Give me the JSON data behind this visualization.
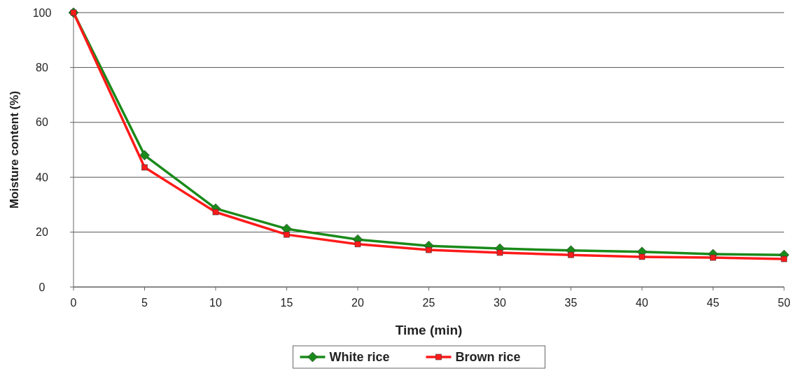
{
  "chart_data": {
    "type": "line",
    "xlabel": "Time (min)",
    "ylabel": "Moisture content (%)",
    "x": [
      0,
      5,
      10,
      15,
      20,
      25,
      30,
      35,
      40,
      45,
      50
    ],
    "series": [
      {
        "name": "White rice",
        "color": "#1a8a1a",
        "marker": "diamond",
        "values": [
          100,
          48,
          28.6,
          21.2,
          17.3,
          15,
          14,
          13.3,
          12.8,
          12,
          11.7
        ]
      },
      {
        "name": "Brown rice",
        "color": "#ff1a1a",
        "marker": "square",
        "values": [
          100,
          43.6,
          27.3,
          19.1,
          15.6,
          13.5,
          12.5,
          11.7,
          11,
          10.7,
          10.2
        ]
      }
    ],
    "xlim": [
      0,
      50
    ],
    "xticks": [
      0,
      5,
      10,
      15,
      20,
      25,
      30,
      35,
      40,
      45,
      50
    ],
    "ylim": [
      0,
      100
    ],
    "yticks": [
      0,
      20,
      40,
      60,
      80,
      100
    ],
    "grid": "y",
    "legend": "bottom",
    "line_style": "solid"
  }
}
